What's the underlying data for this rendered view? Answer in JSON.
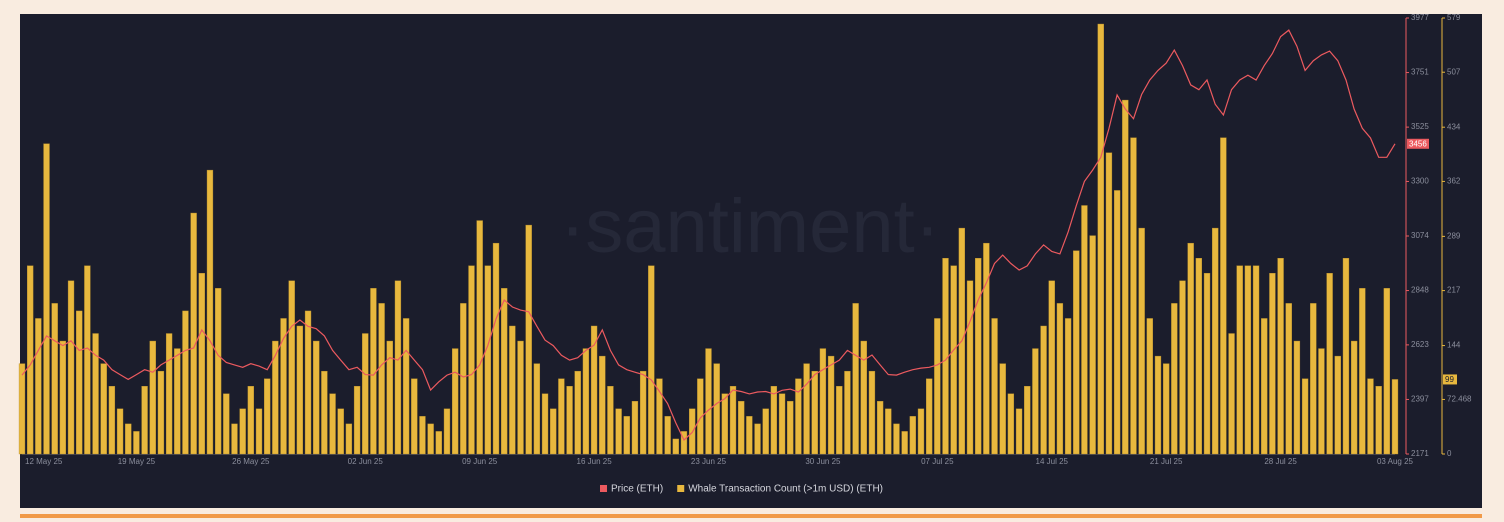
{
  "chart_data": {
    "type": "combo",
    "watermark": "·santiment·",
    "categories": [
      "12 May 25",
      null,
      null,
      null,
      null,
      null,
      null,
      null,
      null,
      null,
      null,
      null,
      null,
      null,
      "19 May 25",
      null,
      null,
      null,
      null,
      null,
      null,
      null,
      null,
      null,
      null,
      null,
      null,
      null,
      "26 May 25",
      null,
      null,
      null,
      null,
      null,
      null,
      null,
      null,
      null,
      null,
      null,
      null,
      null,
      "02 Jun 25",
      null,
      null,
      null,
      null,
      null,
      null,
      null,
      null,
      null,
      null,
      null,
      null,
      null,
      "09 Jun 25",
      null,
      null,
      null,
      null,
      null,
      null,
      null,
      null,
      null,
      null,
      null,
      null,
      null,
      "16 Jun 25",
      null,
      null,
      null,
      null,
      null,
      null,
      null,
      null,
      null,
      null,
      null,
      null,
      null,
      "23 Jun 25",
      null,
      null,
      null,
      null,
      null,
      null,
      null,
      null,
      null,
      null,
      null,
      null,
      null,
      "30 Jun 25",
      null,
      null,
      null,
      null,
      null,
      null,
      null,
      null,
      null,
      null,
      null,
      null,
      null,
      "07 Jul 25",
      null,
      null,
      null,
      null,
      null,
      null,
      null,
      null,
      null,
      null,
      null,
      null,
      null,
      "14 Jul 25",
      null,
      null,
      null,
      null,
      null,
      null,
      null,
      null,
      null,
      null,
      null,
      null,
      null,
      "21 Jul 25",
      null,
      null,
      null,
      null,
      null,
      null,
      null,
      null,
      null,
      null,
      null,
      null,
      null,
      "28 Jul 25",
      null,
      null,
      null,
      null,
      null,
      null,
      null,
      null,
      null,
      null,
      null,
      null,
      null,
      "03 Aug 25"
    ],
    "series": [
      {
        "name": "Whale Transaction Count (>1m USD) (ETH)",
        "type": "bar",
        "axis": "y2",
        "color": "#e8b83e",
        "current_value": 99,
        "values": [
          120,
          250,
          180,
          412,
          200,
          150,
          230,
          190,
          250,
          160,
          120,
          90,
          60,
          40,
          30,
          90,
          150,
          110,
          160,
          140,
          190,
          320,
          240,
          377,
          220,
          80,
          40,
          60,
          90,
          60,
          100,
          150,
          180,
          230,
          170,
          190,
          150,
          110,
          80,
          60,
          40,
          90,
          160,
          220,
          200,
          150,
          230,
          180,
          100,
          50,
          40,
          30,
          60,
          140,
          200,
          250,
          310,
          250,
          280,
          220,
          170,
          150,
          304,
          120,
          80,
          60,
          100,
          90,
          110,
          140,
          170,
          130,
          90,
          60,
          50,
          70,
          110,
          250,
          100,
          50,
          20,
          30,
          60,
          100,
          140,
          120,
          80,
          90,
          70,
          50,
          40,
          60,
          90,
          80,
          70,
          100,
          120,
          110,
          140,
          130,
          90,
          110,
          200,
          150,
          110,
          70,
          60,
          40,
          30,
          50,
          60,
          100,
          180,
          260,
          250,
          300,
          230,
          260,
          280,
          180,
          120,
          80,
          60,
          90,
          140,
          170,
          230,
          200,
          180,
          270,
          330,
          290,
          571,
          400,
          350,
          470,
          420,
          300,
          180,
          130,
          120,
          200,
          230,
          280,
          260,
          240,
          300,
          420,
          160,
          250,
          250,
          250,
          180,
          240,
          260,
          200,
          150,
          100,
          200,
          140,
          240,
          130,
          260,
          150,
          220,
          100,
          90,
          220,
          99
        ]
      },
      {
        "name": "Price (ETH)",
        "type": "line",
        "axis": "y",
        "color": "#ec5a5f",
        "current_value": 3456,
        "values": [
          2498,
          2540,
          2600,
          2660,
          2640,
          2620,
          2640,
          2600,
          2610,
          2580,
          2560,
          2520,
          2500,
          2480,
          2500,
          2520,
          2510,
          2540,
          2560,
          2580,
          2600,
          2610,
          2685,
          2640,
          2580,
          2550,
          2540,
          2530,
          2545,
          2535,
          2520,
          2580,
          2650,
          2700,
          2726,
          2700,
          2690,
          2660,
          2600,
          2560,
          2520,
          2530,
          2500,
          2498,
          2540,
          2570,
          2560,
          2600,
          2560,
          2520,
          2436,
          2470,
          2498,
          2510,
          2490,
          2500,
          2540,
          2620,
          2730,
          2809,
          2780,
          2767,
          2760,
          2700,
          2643,
          2620,
          2580,
          2560,
          2570,
          2600,
          2622,
          2685,
          2600,
          2540,
          2520,
          2510,
          2500,
          2478,
          2430,
          2380,
          2300,
          2229,
          2260,
          2320,
          2353,
          2380,
          2400,
          2436,
          2430,
          2420,
          2428,
          2430,
          2420,
          2435,
          2440,
          2428,
          2460,
          2500,
          2520,
          2540,
          2560,
          2600,
          2580,
          2560,
          2581,
          2540,
          2500,
          2498,
          2510,
          2520,
          2527,
          2530,
          2540,
          2560,
          2602,
          2640,
          2720,
          2809,
          2880,
          2960,
          2995,
          2960,
          2933,
          2950,
          3000,
          3037,
          3010,
          3000,
          3090,
          3200,
          3300,
          3347,
          3400,
          3520,
          3658,
          3600,
          3560,
          3660,
          3720,
          3760,
          3790,
          3844,
          3780,
          3700,
          3680,
          3720,
          3620,
          3575,
          3680,
          3720,
          3740,
          3720,
          3780,
          3830,
          3900,
          3927,
          3860,
          3760,
          3800,
          3824,
          3840,
          3800,
          3720,
          3600,
          3520,
          3480,
          3400,
          3400,
          3456
        ]
      }
    ],
    "ylim": [
      2171,
      3977
    ],
    "yticks": [
      2171,
      2397,
      2623,
      2848,
      3074,
      3300,
      3525,
      3751,
      3977
    ],
    "y2lim": [
      0,
      579
    ],
    "y2ticks": [
      0,
      72.468,
      144,
      217,
      289,
      362,
      434,
      507,
      579
    ]
  }
}
